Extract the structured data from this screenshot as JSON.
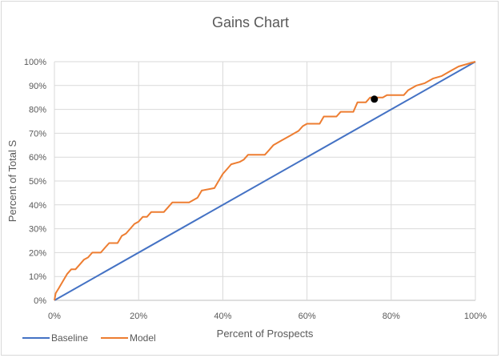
{
  "chart_data": {
    "type": "line",
    "title": "Gains Chart",
    "xlabel": "Percent of Prospects",
    "ylabel": "Percent of Total S",
    "xlim": [
      0,
      100
    ],
    "ylim": [
      0,
      100
    ],
    "x_ticks": [
      "0%",
      "20%",
      "40%",
      "60%",
      "80%",
      "100%"
    ],
    "y_ticks": [
      "0%",
      "10%",
      "20%",
      "30%",
      "40%",
      "50%",
      "60%",
      "70%",
      "80%",
      "90%",
      "100%"
    ],
    "grid": true,
    "legend_position": "bottom-left",
    "series": [
      {
        "name": "Baseline",
        "color": "#4472c4",
        "points": [
          [
            0,
            0
          ],
          [
            100,
            100
          ]
        ]
      },
      {
        "name": "Model",
        "color": "#ed7d31",
        "points": [
          [
            0,
            0
          ],
          [
            0.3,
            3
          ],
          [
            1,
            5
          ],
          [
            2,
            8
          ],
          [
            3,
            11
          ],
          [
            4,
            13
          ],
          [
            5,
            13
          ],
          [
            6,
            15
          ],
          [
            7,
            17
          ],
          [
            8,
            18
          ],
          [
            9,
            20
          ],
          [
            11,
            20
          ],
          [
            12,
            22
          ],
          [
            13,
            24
          ],
          [
            15,
            24
          ],
          [
            16,
            27
          ],
          [
            17,
            28
          ],
          [
            18,
            30
          ],
          [
            19,
            32
          ],
          [
            20,
            33
          ],
          [
            21,
            35
          ],
          [
            22,
            35
          ],
          [
            23,
            37
          ],
          [
            26,
            37
          ],
          [
            27,
            39
          ],
          [
            28,
            41
          ],
          [
            32,
            41
          ],
          [
            34,
            43
          ],
          [
            35,
            46
          ],
          [
            38,
            47
          ],
          [
            39,
            50
          ],
          [
            40,
            53
          ],
          [
            41,
            55
          ],
          [
            42,
            57
          ],
          [
            44,
            58
          ],
          [
            45,
            59
          ],
          [
            46,
            61
          ],
          [
            50,
            61
          ],
          [
            51,
            63
          ],
          [
            52,
            65
          ],
          [
            54,
            67
          ],
          [
            56,
            69
          ],
          [
            57,
            70
          ],
          [
            58,
            71
          ],
          [
            59,
            73
          ],
          [
            60,
            74
          ],
          [
            63,
            74
          ],
          [
            64,
            77
          ],
          [
            67,
            77
          ],
          [
            68,
            79
          ],
          [
            71,
            79
          ],
          [
            72,
            83
          ],
          [
            74,
            83
          ],
          [
            75,
            85
          ],
          [
            78,
            85
          ],
          [
            79,
            86
          ],
          [
            83,
            86
          ],
          [
            84,
            88
          ],
          [
            86,
            90
          ],
          [
            88,
            91
          ],
          [
            90,
            93
          ],
          [
            92,
            94
          ],
          [
            94,
            96
          ],
          [
            96,
            98
          ],
          [
            100,
            100
          ]
        ]
      }
    ],
    "marker": {
      "x": 76,
      "y": 84.3,
      "color": "#000000"
    }
  }
}
